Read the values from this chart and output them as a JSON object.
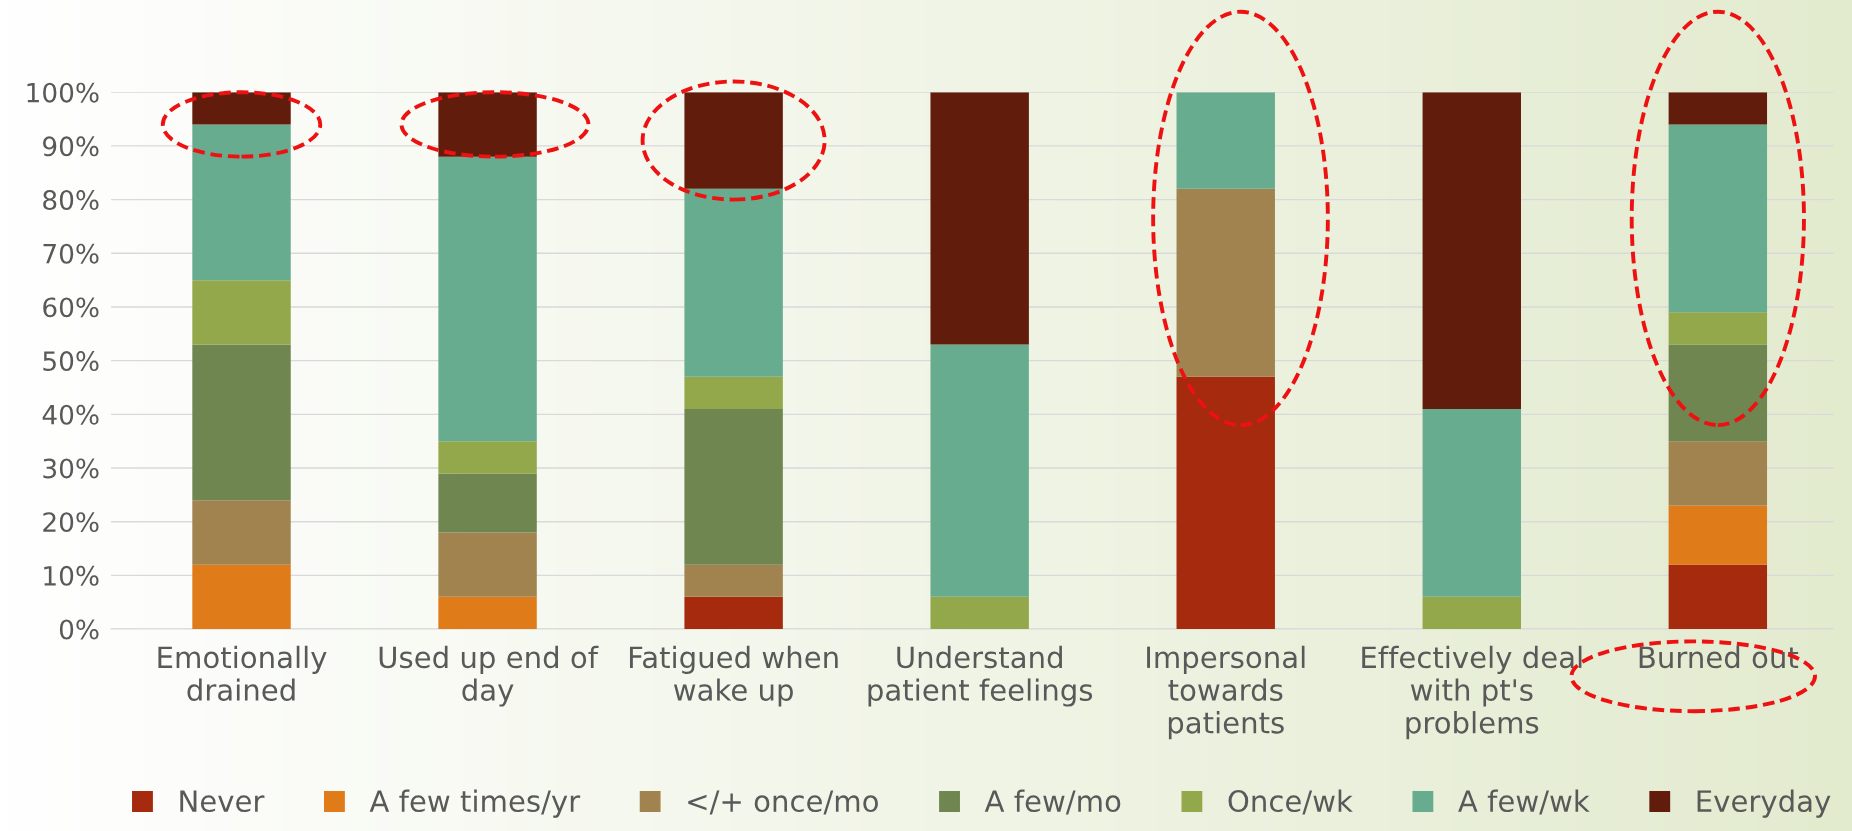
{
  "chart_data": {
    "type": "bar",
    "stacked": true,
    "categories": [
      "Emotionally\ndrained",
      "Used up end of\nday",
      "Fatigued when\nwake up",
      "Understand\npatient feelings",
      "Impersonal\ntowards\npatients",
      "Effectively deal\nwith pt's\nproblems",
      "Burned out"
    ],
    "series": [
      {
        "name": "Never",
        "color": "#a52a0e",
        "values": [
          0,
          0,
          6,
          0,
          47,
          0,
          12
        ]
      },
      {
        "name": "A few times/yr",
        "color": "#e07b1a",
        "values": [
          12,
          6,
          0,
          0,
          0,
          0,
          11
        ]
      },
      {
        "name": "</+ once/mo",
        "color": "#a0834f",
        "values": [
          12,
          12,
          6,
          0,
          35,
          0,
          12
        ]
      },
      {
        "name": "A few/mo",
        "color": "#6f8650",
        "values": [
          29,
          11,
          29,
          0,
          0,
          0,
          18
        ]
      },
      {
        "name": "Once/wk",
        "color": "#93a84a",
        "values": [
          12,
          6,
          6,
          6,
          0,
          6,
          6
        ]
      },
      {
        "name": "A few/wk",
        "color": "#68ac90",
        "values": [
          29,
          53,
          35,
          47,
          18,
          35,
          35
        ]
      },
      {
        "name": "Everyday",
        "color": "#621c0c",
        "values": [
          6,
          12,
          18,
          47,
          0,
          59,
          6
        ]
      }
    ],
    "ylim": [
      0,
      100
    ],
    "yticks": [
      {
        "value": 0,
        "label": "0%"
      },
      {
        "value": 10,
        "label": "10%"
      },
      {
        "value": 20,
        "label": "20%"
      },
      {
        "value": 30,
        "label": "30%"
      },
      {
        "value": 40,
        "label": "40%"
      },
      {
        "value": 50,
        "label": "50%"
      },
      {
        "value": 60,
        "label": "60%"
      },
      {
        "value": 70,
        "label": "70%"
      },
      {
        "value": 80,
        "label": "80%"
      },
      {
        "value": 90,
        "label": "90%"
      },
      {
        "value": 100,
        "label": "100%"
      }
    ],
    "grid": "y",
    "legend": "bottom"
  }
}
